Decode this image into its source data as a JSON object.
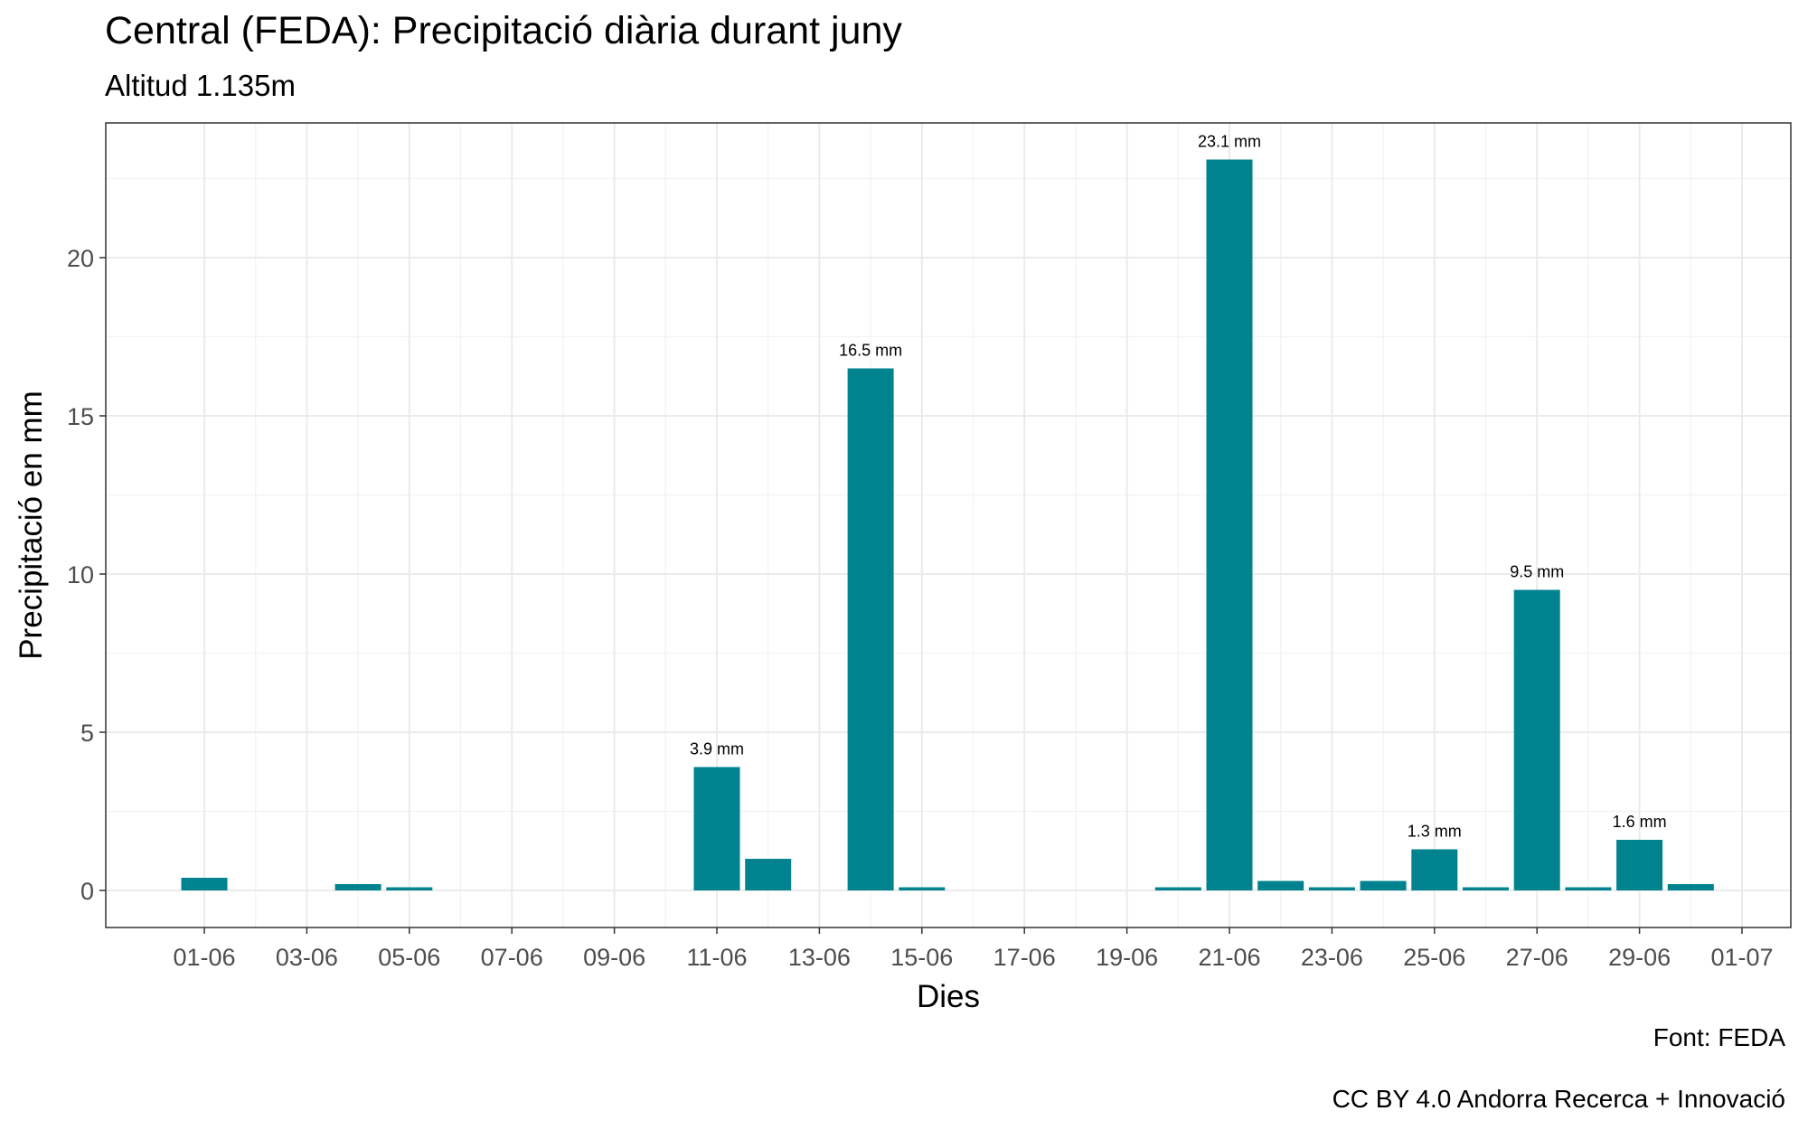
{
  "chart_data": {
    "type": "bar",
    "title": "Central (FEDA): Precipitació diària durant juny",
    "subtitle": "Altitud 1.135m",
    "xlabel": "Dies",
    "ylabel": "Precipitació en mm",
    "captions": [
      "Font: FEDA",
      "CC BY 4.0 Andorra Recerca + Innovació"
    ],
    "x_ticks": [
      "01-06",
      "03-06",
      "05-06",
      "07-06",
      "09-06",
      "11-06",
      "13-06",
      "15-06",
      "17-06",
      "19-06",
      "21-06",
      "23-06",
      "25-06",
      "27-06",
      "29-06",
      "01-07"
    ],
    "y_ticks": [
      0,
      5,
      10,
      15,
      20
    ],
    "ylim": [
      -1.1,
      24.2
    ],
    "grid": true,
    "bar_color": "#00838f",
    "values": [
      {
        "day": 1,
        "value": 0.4
      },
      {
        "day": 4,
        "value": 0.2
      },
      {
        "day": 5,
        "value": 0.1
      },
      {
        "day": 11,
        "value": 3.9,
        "label": "3.9 mm"
      },
      {
        "day": 12,
        "value": 1.0
      },
      {
        "day": 14,
        "value": 16.5,
        "label": "16.5 mm"
      },
      {
        "day": 15,
        "value": 0.1
      },
      {
        "day": 20,
        "value": 0.1
      },
      {
        "day": 21,
        "value": 23.1,
        "label": "23.1 mm"
      },
      {
        "day": 22,
        "value": 0.3
      },
      {
        "day": 23,
        "value": 0.1
      },
      {
        "day": 24,
        "value": 0.3
      },
      {
        "day": 25,
        "value": 1.3,
        "label": "1.3 mm"
      },
      {
        "day": 26,
        "value": 0.1
      },
      {
        "day": 27,
        "value": 9.5,
        "label": "9.5 mm"
      },
      {
        "day": 28,
        "value": 0.1
      },
      {
        "day": 29,
        "value": 1.6,
        "label": "1.6 mm"
      },
      {
        "day": 30,
        "value": 0.2
      }
    ]
  }
}
